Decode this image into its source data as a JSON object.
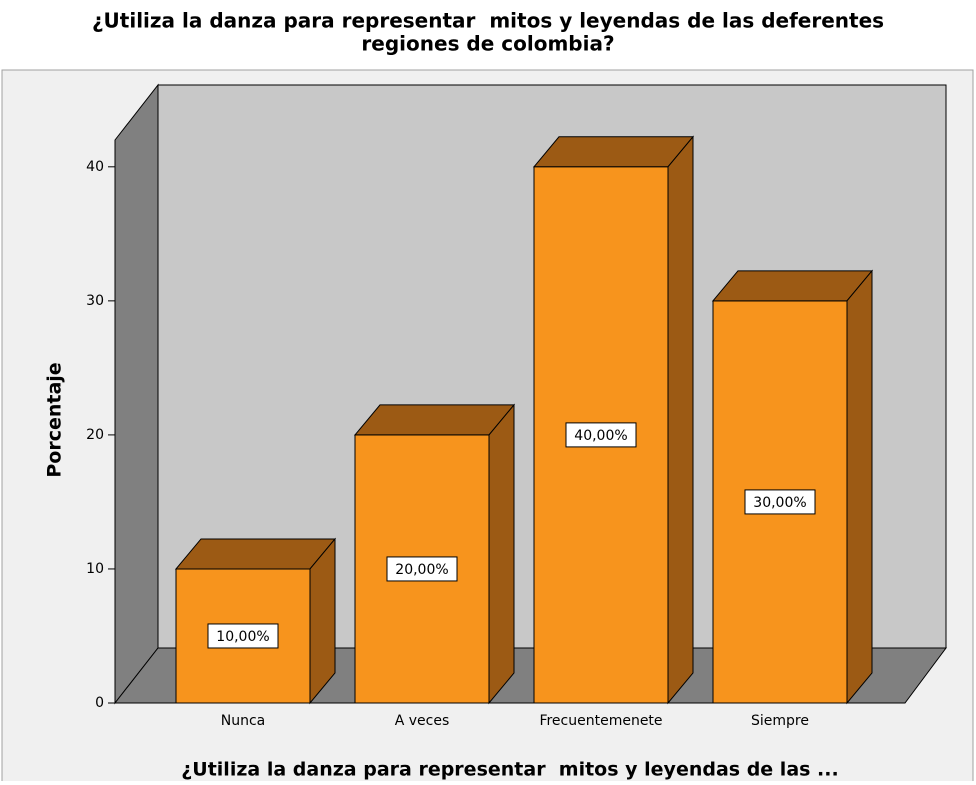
{
  "chart_data": {
    "type": "bar3d",
    "title": [
      "¿Utiliza la danza para representar  mitos y leyendas de las deferentes",
      "regiones de colombia?"
    ],
    "xlabel": "¿Utiliza la danza para representar  mitos y leyendas de las ...",
    "ylabel": "Porcentaje",
    "categories": [
      "Nunca",
      "A veces",
      "Frecuentemenete",
      "Siempre"
    ],
    "values": [
      10,
      20,
      40,
      30
    ],
    "value_labels": [
      "10,00%",
      "20,00%",
      "40,00%",
      "30,00%"
    ],
    "color": "#f7941d",
    "shade_color": "#9c5a14",
    "ylim": [
      0,
      42
    ],
    "yticks": [
      0,
      10,
      20,
      30,
      40
    ],
    "grid": false
  }
}
